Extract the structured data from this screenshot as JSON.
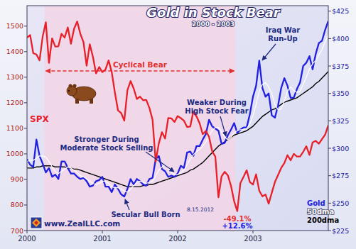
{
  "chart_data": {
    "type": "line",
    "title": "Gold in Stock Bear",
    "subtitle": "2000 - 2003",
    "x": [
      2000,
      2000.0417,
      2000.0833,
      2000.125,
      2000.1667,
      2000.2083,
      2000.25,
      2000.2917,
      2000.3333,
      2000.375,
      2000.4167,
      2000.4583,
      2000.5,
      2000.5417,
      2000.5833,
      2000.625,
      2000.6667,
      2000.7083,
      2000.75,
      2000.7917,
      2000.8333,
      2000.875,
      2000.9167,
      2000.9583,
      2001,
      2001.0417,
      2001.0833,
      2001.125,
      2001.1667,
      2001.2083,
      2001.25,
      2001.2917,
      2001.3333,
      2001.375,
      2001.4167,
      2001.4583,
      2001.5,
      2001.5417,
      2001.5833,
      2001.625,
      2001.6667,
      2001.7083,
      2001.75,
      2001.7917,
      2001.8333,
      2001.875,
      2001.9167,
      2001.9583,
      2002,
      2002.0417,
      2002.0833,
      2002.125,
      2002.1667,
      2002.2083,
      2002.25,
      2002.2917,
      2002.3333,
      2002.375,
      2002.4167,
      2002.4583,
      2002.5,
      2002.5417,
      2002.5833,
      2002.625,
      2002.6667,
      2002.7083,
      2002.75,
      2002.7917,
      2002.8333,
      2002.875,
      2002.9167,
      2002.9583,
      2003,
      2003.0417,
      2003.0833,
      2003.125,
      2003.1667,
      2003.2083,
      2003.25,
      2003.2917,
      2003.3333,
      2003.375,
      2003.4167,
      2003.4583,
      2003.5,
      2003.5417,
      2003.5833,
      2003.625,
      2003.6667,
      2003.7083,
      2003.75,
      2003.7917,
      2003.8333,
      2003.875,
      2003.9167,
      2003.9583,
      2004
    ],
    "xlim": [
      2000,
      2004
    ],
    "xticks": [
      2000,
      2001,
      2002,
      2003
    ],
    "ylim": [
      700,
      1580
    ],
    "yticks": [
      700,
      800,
      900,
      1000,
      1100,
      1200,
      1300,
      1400,
      1500
    ],
    "y2lim": [
      225,
      430
    ],
    "y2ticks": [
      {
        "value": 225,
        "label": "$225"
      },
      {
        "value": 250,
        "label": "$250"
      },
      {
        "value": 275,
        "label": "$275"
      },
      {
        "value": 300,
        "label": "$300"
      },
      {
        "value": 325,
        "label": "$325"
      },
      {
        "value": 350,
        "label": "$350"
      },
      {
        "value": 375,
        "label": "$375"
      },
      {
        "value": 400,
        "label": "$400"
      },
      {
        "value": 425,
        "label": "$425"
      }
    ],
    "grid": false,
    "series": [
      {
        "name": "SPX",
        "color": "#e8202a",
        "values": [
          1455,
          1465,
          1394,
          1389,
          1366,
          1460,
          1515,
          1356,
          1452,
          1420,
          1421,
          1470,
          1455,
          1495,
          1431,
          1490,
          1518,
          1470,
          1437,
          1345,
          1429,
          1380,
          1315,
          1340,
          1320,
          1330,
          1366,
          1320,
          1240,
          1170,
          1160,
          1130,
          1249,
          1285,
          1256,
          1215,
          1224,
          1210,
          1211,
          1180,
          1134,
          970,
          1041,
          1085,
          1060,
          1140,
          1139,
          1125,
          1148,
          1140,
          1130,
          1105,
          1107,
          1165,
          1147,
          1120,
          1077,
          1090,
          1067,
          1010,
          990,
          830,
          912,
          930,
          916,
          875,
          815,
          776,
          886,
          910,
          936,
          890,
          880,
          920,
          856,
          834,
          841,
          805,
          848,
          890,
          917,
          945,
          964,
          995,
          975,
          1000,
          990,
          990,
          1008,
          1030,
          996,
          1045,
          1051,
          1040,
          1058,
          1075,
          1112
        ]
      },
      {
        "name": "Gold",
        "color": "#2020e0",
        "axis": "y2",
        "values": [
          290,
          285,
          283,
          308,
          293,
          286,
          278,
          282,
          274,
          276,
          272,
          288,
          288,
          282,
          277,
          277,
          274,
          272,
          273,
          270,
          265,
          266,
          270,
          271,
          274,
          265,
          265,
          260,
          267,
          263,
          258,
          256,
          263,
          272,
          267,
          272,
          270,
          267,
          266,
          272,
          273,
          290,
          293,
          281,
          279,
          274,
          275,
          274,
          277,
          284,
          282,
          296,
          297,
          293,
          302,
          302,
          308,
          313,
          326,
          320,
          318,
          316,
          304,
          305,
          312,
          317,
          323,
          314,
          317,
          319,
          319,
          331,
          347,
          357,
          380,
          355,
          347,
          350,
          330,
          328,
          339,
          355,
          364,
          357,
          346,
          346,
          354,
          360,
          375,
          378,
          384,
          372,
          386,
          396,
          398,
          408,
          416
        ]
      },
      {
        "name": "50dma",
        "color": "#ffffff",
        "axis": "y2",
        "values": [
          288,
          289,
          289,
          291,
          293,
          293,
          292,
          288,
          283,
          279,
          277,
          279,
          281,
          283,
          282,
          280,
          278,
          275,
          274,
          272,
          270,
          268,
          267,
          268,
          270,
          270,
          268,
          265,
          264,
          264,
          263,
          261,
          260,
          263,
          266,
          269,
          270,
          269,
          268,
          269,
          270,
          275,
          280,
          283,
          285,
          282,
          278,
          276,
          276,
          278,
          280,
          285,
          290,
          294,
          297,
          299,
          302,
          306,
          311,
          316,
          319,
          319,
          315,
          310,
          308,
          310,
          314,
          316,
          317,
          317,
          318,
          322,
          330,
          340,
          352,
          358,
          360,
          356,
          350,
          340,
          335,
          336,
          343,
          352,
          356,
          353,
          351,
          352,
          358,
          365,
          372,
          377,
          380,
          385,
          390,
          397,
          404
        ]
      },
      {
        "name": "200dma",
        "color": "#000000",
        "axis": "y2",
        "values": [
          282,
          282,
          282,
          283,
          283,
          284,
          284,
          284,
          284,
          283,
          283,
          283,
          283,
          282,
          282,
          281,
          281,
          280,
          279,
          278,
          277,
          276,
          275,
          274,
          273,
          272,
          271,
          270,
          269,
          268,
          267,
          266,
          265,
          265,
          265,
          265,
          265,
          266,
          266,
          267,
          267,
          268,
          269,
          270,
          271,
          272,
          273,
          274,
          275,
          276,
          277,
          278,
          280,
          281,
          283,
          285,
          287,
          290,
          293,
          296,
          299,
          302,
          304,
          306,
          308,
          310,
          312,
          313,
          314,
          315,
          316,
          318,
          320,
          323,
          326,
          329,
          331,
          333,
          335,
          336,
          338,
          340,
          342,
          343,
          344,
          345,
          346,
          348,
          350,
          352,
          354,
          356,
          359,
          361,
          364,
          367,
          370
        ]
      }
    ],
    "bear_market": {
      "label": "Cyclical Bear",
      "x": [
        2000.23,
        2002.77
      ]
    },
    "annotations": [
      "Iraq War\nRun-Up",
      "Weaker During\nHigh Stock Fear",
      "Stronger During\nModerate Stock Selling",
      "Secular Bull Born",
      "-49.1%",
      "+12.6%",
      "8.15.2012",
      "www.ZealLLC.com"
    ]
  }
}
